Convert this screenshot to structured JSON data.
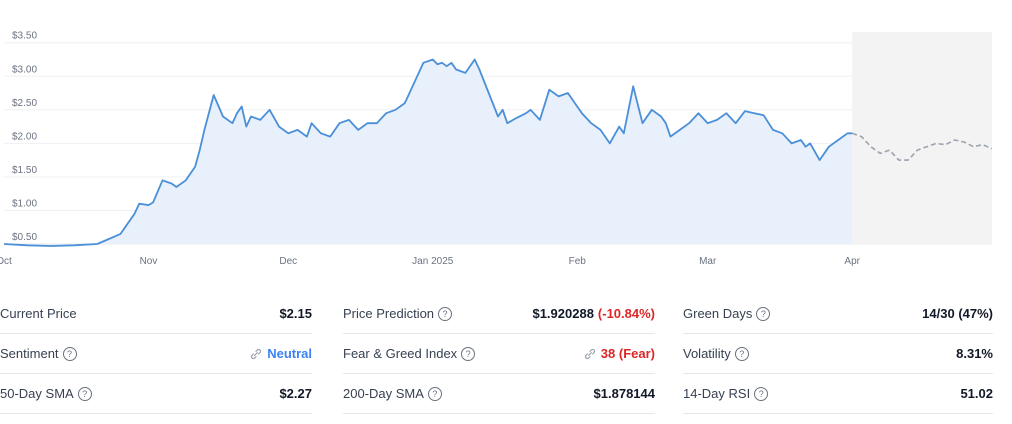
{
  "chart_data": {
    "type": "area",
    "y_tick_labels": [
      "$0.50",
      "$1.00",
      "$1.50",
      "$2.00",
      "$2.50",
      "$3.00",
      "$3.50"
    ],
    "y_ticks": [
      0.5,
      1.0,
      1.5,
      2.0,
      2.5,
      3.0,
      3.5
    ],
    "ylim": [
      0.5,
      3.6
    ],
    "x_tick_labels": [
      "Oct",
      "Nov",
      "Dec",
      "Jan 2025",
      "Feb",
      "Mar",
      "Apr"
    ],
    "x_ticks": [
      0,
      31,
      61,
      92,
      123,
      151,
      182
    ],
    "xlim": [
      0,
      212
    ],
    "grid": true,
    "colors": {
      "line": "#4a8fd8",
      "fill": "#e8f0fc",
      "forecast_line": "#9ca3af",
      "forecast_fill": "#f3f3f3"
    },
    "series": [
      {
        "kind": "actual",
        "x": [
          0,
          5,
          10,
          15,
          20,
          22,
          25,
          28,
          29,
          31,
          32,
          34,
          36,
          37,
          39,
          41,
          42,
          43,
          45,
          47,
          49,
          50,
          51,
          52,
          53,
          55,
          57,
          59,
          61,
          63,
          65,
          66,
          68,
          70,
          72,
          74,
          76,
          78,
          80,
          82,
          84,
          86,
          88,
          90,
          92,
          93,
          94,
          95,
          96,
          97,
          99,
          101,
          102,
          104,
          106,
          107,
          108,
          110,
          112,
          113,
          115,
          117,
          119,
          121,
          123,
          124,
          126,
          128,
          130,
          132,
          133,
          135,
          137,
          139,
          141,
          142,
          143,
          145,
          147,
          149,
          151,
          153,
          155,
          157,
          159,
          161,
          163,
          165,
          167,
          169,
          171,
          172,
          173,
          175,
          177,
          179,
          181,
          182
        ],
        "y": [
          0.5,
          0.48,
          0.47,
          0.48,
          0.5,
          0.56,
          0.65,
          0.95,
          1.1,
          1.08,
          1.12,
          1.45,
          1.4,
          1.35,
          1.45,
          1.65,
          1.9,
          2.2,
          2.72,
          2.4,
          2.3,
          2.45,
          2.55,
          2.25,
          2.4,
          2.35,
          2.5,
          2.25,
          2.15,
          2.2,
          2.1,
          2.3,
          2.15,
          2.1,
          2.3,
          2.35,
          2.2,
          2.3,
          2.3,
          2.45,
          2.5,
          2.6,
          2.9,
          3.2,
          3.25,
          3.18,
          3.2,
          3.15,
          3.2,
          3.1,
          3.05,
          3.25,
          3.1,
          2.75,
          2.4,
          2.5,
          2.3,
          2.38,
          2.45,
          2.5,
          2.35,
          2.8,
          2.7,
          2.75,
          2.55,
          2.45,
          2.3,
          2.2,
          2.0,
          2.25,
          2.15,
          2.85,
          2.3,
          2.5,
          2.4,
          2.3,
          2.1,
          2.2,
          2.3,
          2.45,
          2.3,
          2.35,
          2.45,
          2.3,
          2.48,
          2.45,
          2.42,
          2.2,
          2.15,
          2.0,
          2.05,
          1.95,
          2.0,
          1.75,
          1.95,
          2.05,
          2.15,
          2.15
        ]
      },
      {
        "kind": "forecast",
        "x": [
          182,
          184,
          186,
          188,
          190,
          192,
          194,
          196,
          198,
          200,
          202,
          204,
          206,
          208,
          210,
          212
        ],
        "y": [
          2.15,
          2.1,
          1.95,
          1.85,
          1.9,
          1.75,
          1.75,
          1.9,
          1.95,
          2.0,
          1.98,
          2.05,
          2.02,
          1.95,
          1.98,
          1.92
        ]
      }
    ]
  },
  "stats": {
    "col1": [
      {
        "label": "Current Price",
        "value": "$2.15"
      },
      {
        "label": "Sentiment",
        "value": "Neutral"
      },
      {
        "label": "50-Day SMA",
        "value": "$2.27"
      }
    ],
    "col2": [
      {
        "label": "Price Prediction",
        "value": "$1.920288",
        "change": "(-10.84%)"
      },
      {
        "label": "Fear & Greed Index",
        "value": "38 (Fear)"
      },
      {
        "label": "200-Day SMA",
        "value": "$1.878144"
      }
    ],
    "col3": [
      {
        "label": "Green Days",
        "value": "14/30 (47%)"
      },
      {
        "label": "Volatility",
        "value": "8.31%"
      },
      {
        "label": "14-Day RSI",
        "value": "51.02"
      }
    ],
    "help_glyph": "?",
    "icons": {
      "sentiment": "link-icon",
      "fear_greed": "link-icon",
      "help": "question-circle-icon"
    }
  }
}
